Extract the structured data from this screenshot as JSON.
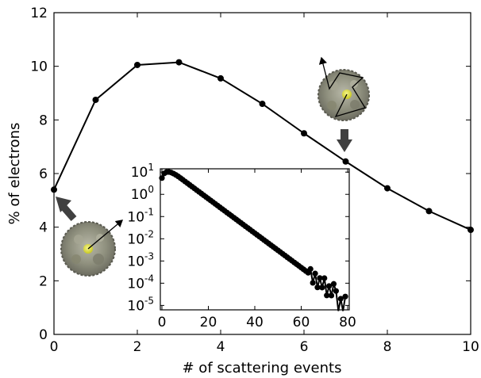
{
  "chart_data": [
    {
      "type": "line",
      "title": "",
      "xlabel": "# of scattering events",
      "ylabel": "% of electrons",
      "xlim": [
        0,
        10
      ],
      "ylim": [
        0,
        12
      ],
      "xticks": [
        "0",
        "2",
        "4",
        "6",
        "8",
        "10"
      ],
      "yticks": [
        "0",
        "2",
        "4",
        "6",
        "8",
        "10",
        "12"
      ],
      "grid": false,
      "x": [
        0,
        1,
        2,
        3,
        4,
        5,
        6,
        7,
        8,
        9,
        10
      ],
      "values": [
        5.4,
        8.75,
        10.05,
        10.15,
        9.55,
        8.6,
        7.5,
        6.45,
        5.45,
        4.6,
        3.9
      ],
      "color": "#000000",
      "annotations": [
        {
          "kind": "arrow",
          "color": "#404040",
          "points_to": {
            "x": 0,
            "y": 5.4
          }
        },
        {
          "kind": "arrow",
          "color": "#404040",
          "points_to": {
            "x": 7,
            "y": 6.45
          }
        },
        {
          "kind": "cluster-image",
          "description": "single scattering path"
        },
        {
          "kind": "cluster-image",
          "description": "multiple scattering path"
        }
      ]
    },
    {
      "type": "scatter",
      "role": "inset",
      "xlabel": "",
      "ylabel": "",
      "xlim": [
        0,
        80
      ],
      "ylim_log10": [
        -5.2,
        1.15
      ],
      "yscale": "log",
      "xticks": [
        "0",
        "20",
        "40",
        "60",
        "80"
      ],
      "yticks": [
        {
          "base": "10",
          "exp": "1"
        },
        {
          "base": "10",
          "exp": "0"
        },
        {
          "base": "10",
          "exp": "-1"
        },
        {
          "base": "10",
          "exp": "-2"
        },
        {
          "base": "10",
          "exp": "-3"
        },
        {
          "base": "10",
          "exp": "-4"
        },
        {
          "base": "10",
          "exp": "-5"
        }
      ],
      "series_model": "y ≈ 6.45·10^(-0.0775·(x-7)) for x ≥ 7; early points 5.4, 8.75, 10.05, 10.15, 9.55, 8.6, 7.5",
      "x_range": [
        0,
        79
      ],
      "color": "#000000"
    }
  ]
}
